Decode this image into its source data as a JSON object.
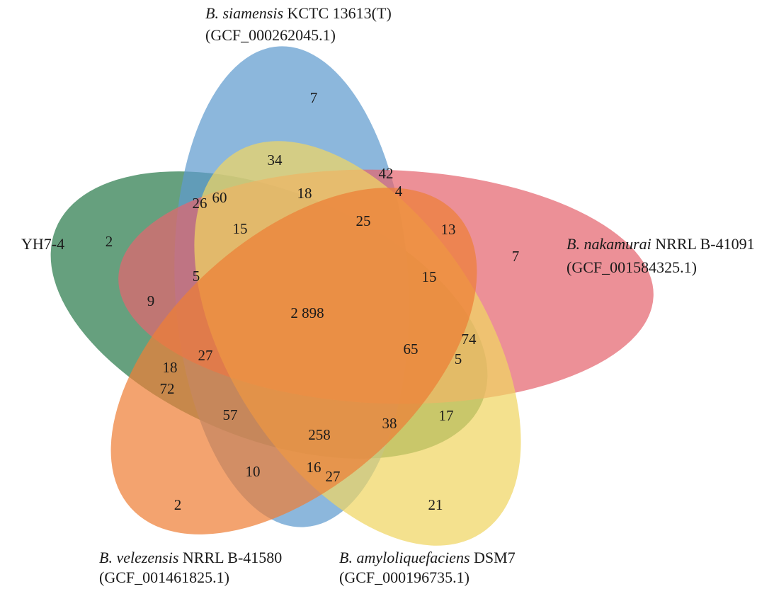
{
  "sets": [
    {
      "key": "yh",
      "italic": "",
      "rest": "YH7-4",
      "line2": "",
      "color": "#0e6a33"
    },
    {
      "key": "sia",
      "italic": "B. siamensis",
      "rest": " KCTC 13613(T)",
      "line2": "(GCF_000262045.1)",
      "color": "#4a8ec8"
    },
    {
      "key": "nak",
      "italic": "B. nakamurai",
      "rest": " NRRL B-41091",
      "line2": "(GCF_001584325.1)",
      "color": "#e0505c"
    },
    {
      "key": "amy",
      "italic": "B. amyloliquefaciens",
      "rest": " DSM7",
      "line2": "(GCF_000196735.1)",
      "color": "#efd04e"
    },
    {
      "key": "vel",
      "italic": "B. velezensis",
      "rest": " NRRL B-41580",
      "line2": "(GCF_001461825.1)",
      "color": "#ec6e1c"
    }
  ],
  "regions": [
    {
      "id": "sia-only",
      "value": "7"
    },
    {
      "id": "r34",
      "value": "34"
    },
    {
      "id": "r42",
      "value": "42"
    },
    {
      "id": "r4",
      "value": "4"
    },
    {
      "id": "r18a",
      "value": "18"
    },
    {
      "id": "r60",
      "value": "60"
    },
    {
      "id": "r26",
      "value": "26"
    },
    {
      "id": "r25",
      "value": "25"
    },
    {
      "id": "r15a",
      "value": "15"
    },
    {
      "id": "yh-only",
      "value": "2"
    },
    {
      "id": "r13",
      "value": "13"
    },
    {
      "id": "nak-only",
      "value": "7"
    },
    {
      "id": "r5a",
      "value": "5"
    },
    {
      "id": "r15b",
      "value": "15"
    },
    {
      "id": "r9",
      "value": "9"
    },
    {
      "id": "core",
      "value": "2 898"
    },
    {
      "id": "r74",
      "value": "74"
    },
    {
      "id": "r65",
      "value": "65"
    },
    {
      "id": "r5b",
      "value": "5"
    },
    {
      "id": "r27a",
      "value": "27"
    },
    {
      "id": "r18b",
      "value": "18"
    },
    {
      "id": "r72",
      "value": "72"
    },
    {
      "id": "r57",
      "value": "57"
    },
    {
      "id": "r17",
      "value": "17"
    },
    {
      "id": "r38",
      "value": "38"
    },
    {
      "id": "r258",
      "value": "258"
    },
    {
      "id": "r10",
      "value": "10"
    },
    {
      "id": "r16",
      "value": "16"
    },
    {
      "id": "r27b",
      "value": "27"
    },
    {
      "id": "vel-only",
      "value": "2"
    },
    {
      "id": "amy-only",
      "value": "21"
    }
  ]
}
